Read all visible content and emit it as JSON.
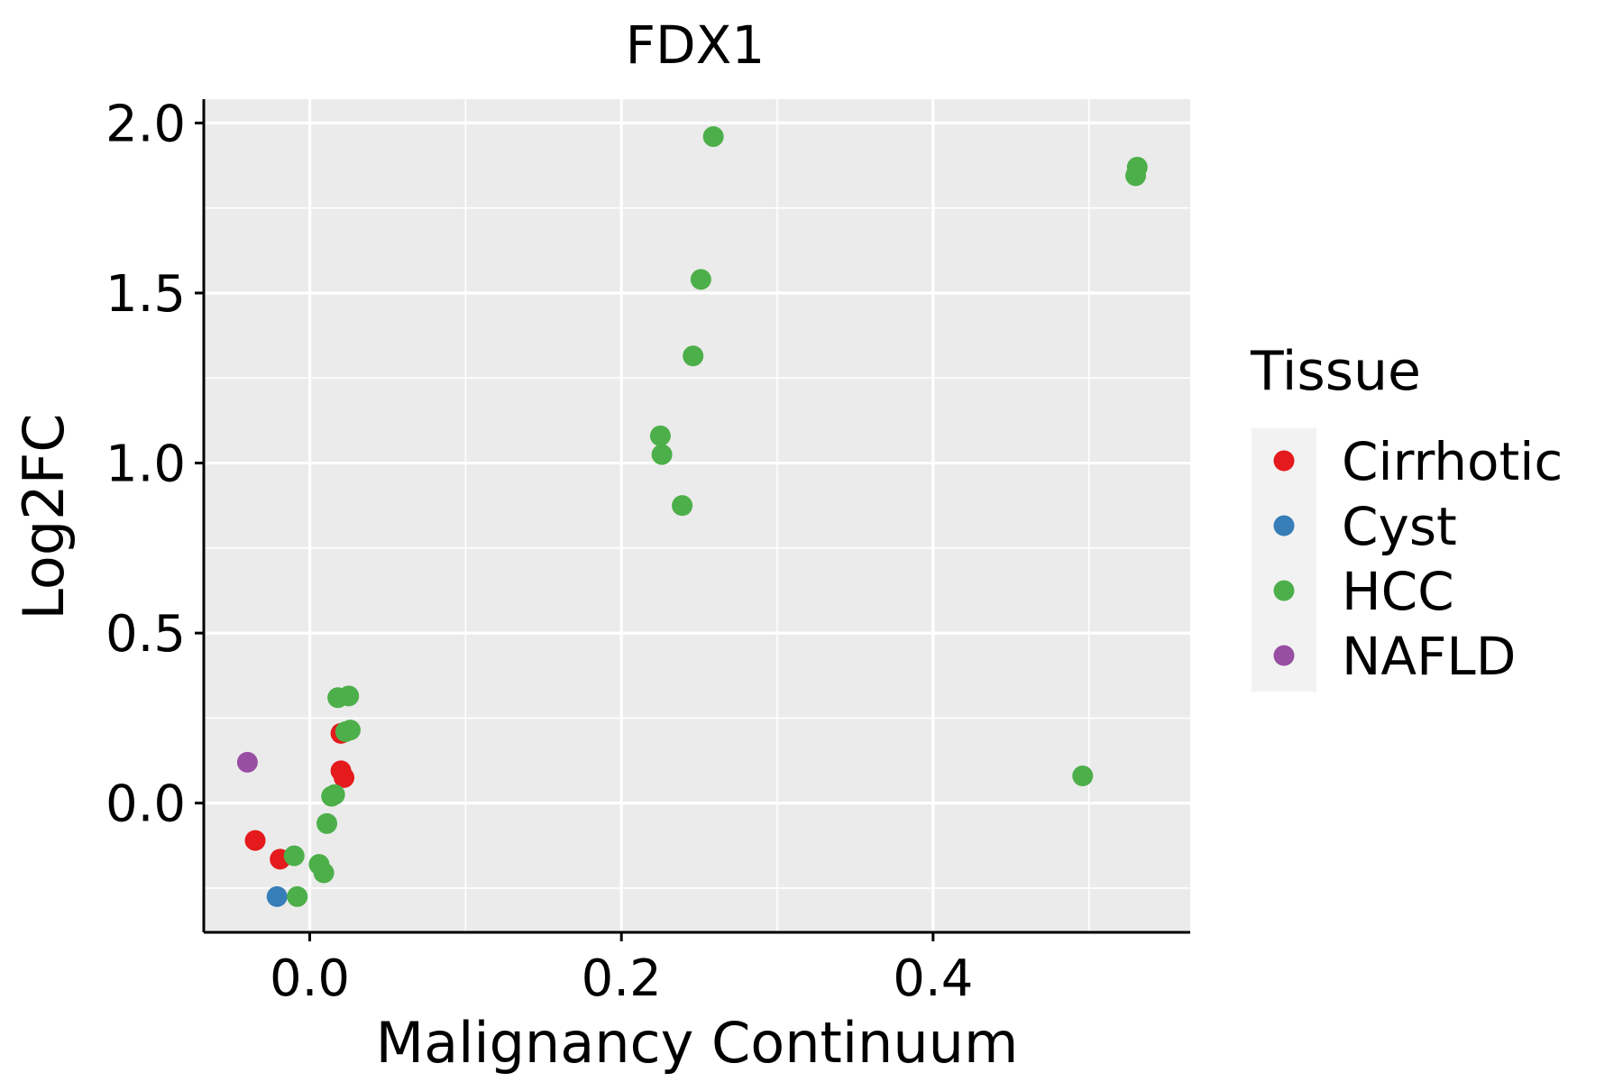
{
  "chart_data": {
    "type": "scatter",
    "title": "FDX1",
    "xlabel": "Malignancy Continuum",
    "ylabel": "Log2FC",
    "xlim": [
      -0.068,
      0.565
    ],
    "ylim": [
      -0.38,
      2.07
    ],
    "x_ticks": [
      0.0,
      0.2,
      0.4
    ],
    "x_tick_labels": [
      "0.0",
      "0.2",
      "0.4"
    ],
    "x_minor_ticks": [
      0.1,
      0.3,
      0.5
    ],
    "y_ticks": [
      0.0,
      0.5,
      1.0,
      1.5,
      2.0
    ],
    "y_tick_labels": [
      "0.0",
      "0.5",
      "1.0",
      "1.5",
      "2.0"
    ],
    "y_minor_ticks": [
      -0.25,
      0.25,
      0.75,
      1.25,
      1.75
    ],
    "grid": true,
    "legend": {
      "title": "Tissue",
      "position": "right",
      "entries": [
        "Cirrhotic",
        "Cyst",
        "HCC",
        "NAFLD"
      ]
    },
    "colors": {
      "Cirrhotic": "#E41A1C",
      "Cyst": "#377EB8",
      "HCC": "#4DAF4A",
      "NAFLD": "#984EA3"
    },
    "series": [
      {
        "name": "Cirrhotic",
        "points": [
          {
            "x": -0.035,
            "y": -0.11
          },
          {
            "x": -0.019,
            "y": -0.165
          },
          {
            "x": 0.02,
            "y": 0.095
          },
          {
            "x": 0.022,
            "y": 0.075
          },
          {
            "x": 0.02,
            "y": 0.205
          }
        ]
      },
      {
        "name": "Cyst",
        "points": [
          {
            "x": -0.021,
            "y": -0.275
          }
        ]
      },
      {
        "name": "HCC",
        "points": [
          {
            "x": -0.01,
            "y": -0.155
          },
          {
            "x": -0.008,
            "y": -0.275
          },
          {
            "x": 0.006,
            "y": -0.18
          },
          {
            "x": 0.009,
            "y": -0.205
          },
          {
            "x": 0.011,
            "y": -0.06
          },
          {
            "x": 0.014,
            "y": 0.02
          },
          {
            "x": 0.016,
            "y": 0.025
          },
          {
            "x": 0.018,
            "y": 0.31
          },
          {
            "x": 0.025,
            "y": 0.315
          },
          {
            "x": 0.023,
            "y": 0.21
          },
          {
            "x": 0.026,
            "y": 0.215
          },
          {
            "x": 0.225,
            "y": 1.08
          },
          {
            "x": 0.226,
            "y": 1.025
          },
          {
            "x": 0.239,
            "y": 0.875
          },
          {
            "x": 0.246,
            "y": 1.315
          },
          {
            "x": 0.251,
            "y": 1.54
          },
          {
            "x": 0.259,
            "y": 1.96
          },
          {
            "x": 0.531,
            "y": 1.87
          },
          {
            "x": 0.53,
            "y": 1.845
          },
          {
            "x": 0.496,
            "y": 0.08
          }
        ]
      },
      {
        "name": "NAFLD",
        "points": [
          {
            "x": -0.04,
            "y": 0.12
          }
        ]
      }
    ]
  }
}
